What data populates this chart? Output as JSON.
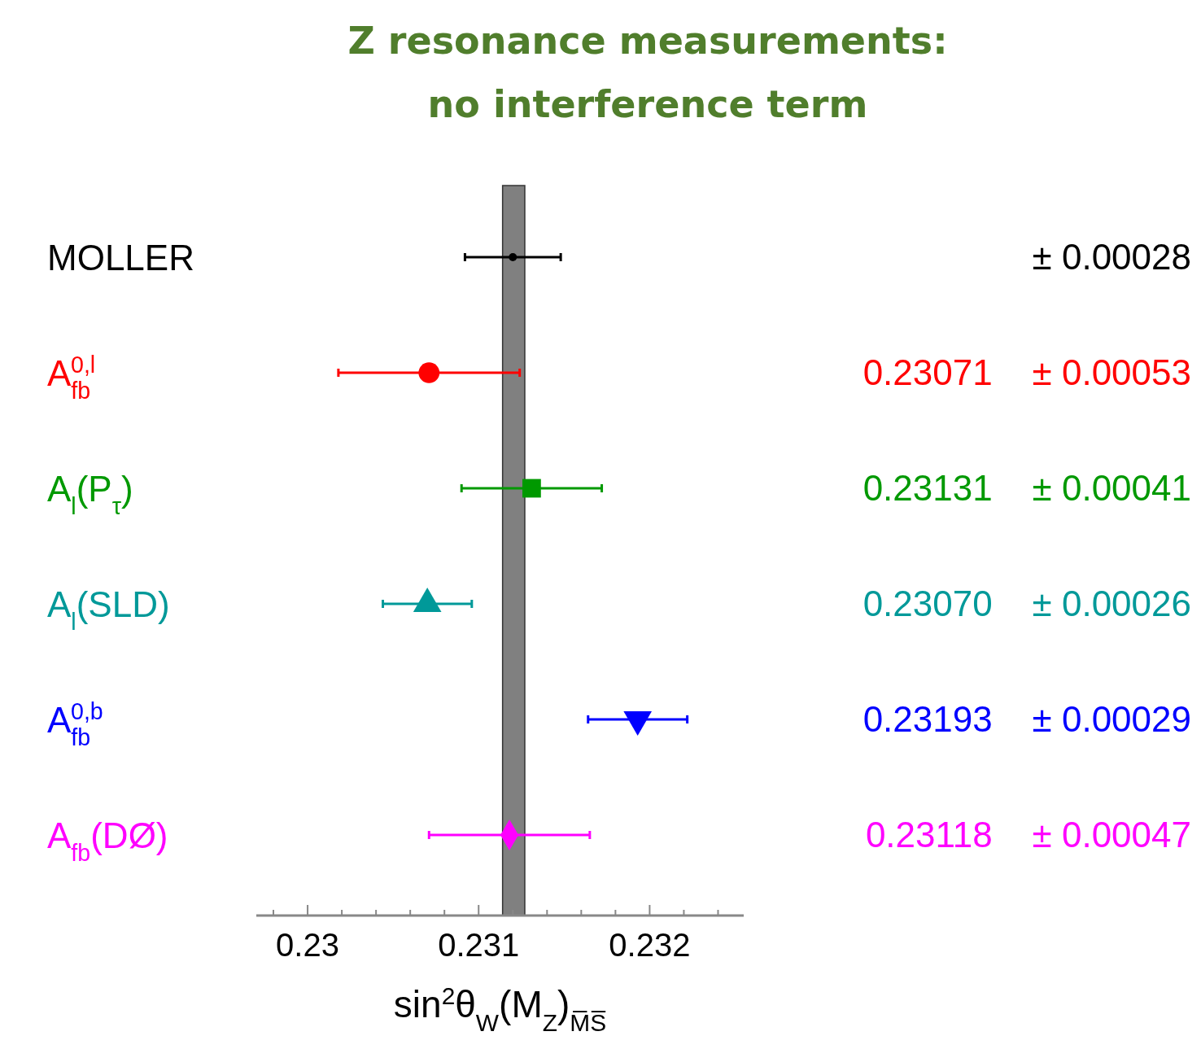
{
  "chart_data": {
    "type": "scatter",
    "orientation": "horizontal",
    "title": "Z resonance measurements: no interference term",
    "xlabel": "sin$^{2}$θ$_{W}$(M$_{Z}$)$_{M̅S̅}$",
    "categories": [
      "MOLLER",
      "A$_{fb}$$^{0,l}$",
      "A$_{l}$(P$_{τ}$)",
      "A$_{l}$(SLD)",
      "A$_{fb}$$^{0,b}$",
      "A$_{fb}$(DØ)"
    ],
    "series": [
      {
        "color": "#000000",
        "values": [
          0.2312,
          null,
          null,
          null,
          null,
          null
        ],
        "errors": [
          0.00028,
          null,
          null,
          null,
          null,
          null
        ]
      },
      {
        "color": "#ff0000",
        "marker": "circle",
        "values": [
          null,
          0.23071,
          null,
          null,
          null,
          null
        ],
        "errors": [
          null,
          0.00053,
          null,
          null,
          null,
          null
        ]
      },
      {
        "color": "#009900",
        "marker": "square",
        "values": [
          null,
          null,
          0.23131,
          null,
          null,
          null
        ],
        "errors": [
          null,
          null,
          0.00041,
          null,
          null,
          null
        ]
      },
      {
        "color": "#009999",
        "marker": "triangle",
        "values": [
          null,
          null,
          null,
          0.2307,
          null,
          null
        ],
        "errors": [
          null,
          null,
          null,
          0.00026,
          null,
          null
        ]
      },
      {
        "color": "#0000ff",
        "marker": "triangle-down",
        "values": [
          null,
          null,
          null,
          null,
          0.23193,
          null
        ],
        "errors": [
          null,
          null,
          null,
          null,
          0.00029,
          null
        ]
      },
      {
        "color": "#ff00ff",
        "marker": "diamond",
        "values": [
          null,
          null,
          null,
          null,
          null,
          0.23118
        ],
        "errors": [
          null,
          null,
          null,
          null,
          null,
          0.00047
        ]
      }
    ],
    "annotations": [
      "± 0.00028",
      "0.23071    ± 0.00053",
      "0.23131    ± 0.00041",
      "0.23070    ± 0.00026",
      "0.23193    ± 0.00029",
      "0.23118    ± 0.00047"
    ],
    "bands": [
      {
        "axis": "x",
        "from": 0.23114,
        "to": 0.23127,
        "color": "#808080"
      }
    ],
    "xlim": [
      0.2297,
      0.23255
    ],
    "xticks": [
      {
        "value": 0.2298,
        "label": null
      },
      0.23,
      {
        "value": 0.2302,
        "label": null
      },
      {
        "value": 0.2304,
        "label": null
      },
      {
        "value": 0.2306,
        "label": null
      },
      {
        "value": 0.2308,
        "label": null
      },
      0.231,
      {
        "value": 0.2312,
        "label": null
      },
      {
        "value": 0.2314,
        "label": null
      },
      {
        "value": 0.2316,
        "label": null
      },
      {
        "value": 0.2318,
        "label": null
      },
      0.232,
      {
        "value": 0.2322,
        "label": null
      },
      {
        "value": 0.2324,
        "label": null
      }
    ],
    "grid": false
  }
}
